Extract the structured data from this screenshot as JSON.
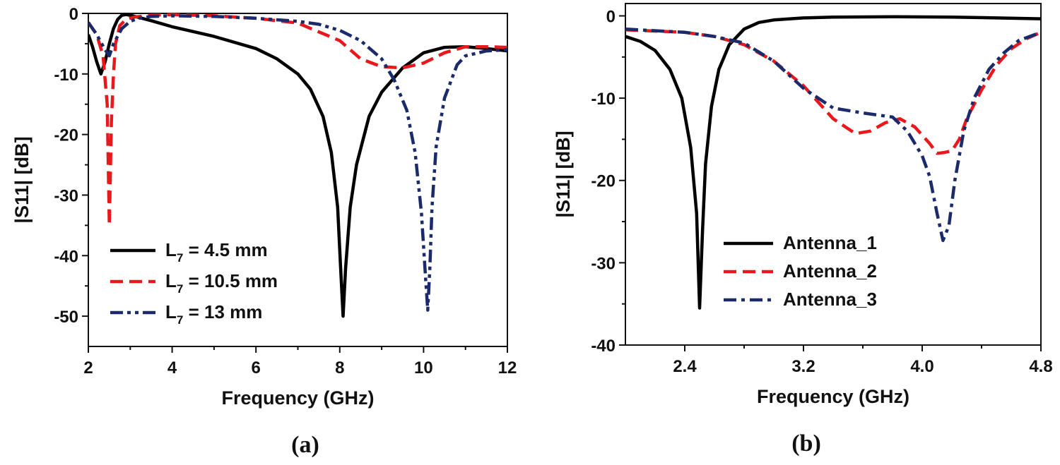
{
  "chart_data": [
    {
      "type": "line",
      "panel_label": "(a)",
      "xlabel": "Frequency (GHz)",
      "ylabel": "|S11| [dB]",
      "xlim": [
        2,
        12
      ],
      "ylim": [
        -55,
        0
      ],
      "xticks": [
        "2",
        "4",
        "6",
        "8",
        "10",
        "12"
      ],
      "xtick_values": [
        2,
        4,
        6,
        8,
        10,
        12
      ],
      "yticks": [
        "0",
        "-10",
        "-20",
        "-30",
        "-40",
        "-50"
      ],
      "ytick_values": [
        0,
        -10,
        -20,
        -30,
        -40,
        -50
      ],
      "legend_position": "bottom-left",
      "series": [
        {
          "name": "L7 = 4.5 mm",
          "legend_main": "L",
          "legend_sub": "7",
          "legend_rest": " = 4.5 mm",
          "color": "#000000",
          "dash": "solid",
          "x": [
            2,
            2.1,
            2.2,
            2.3,
            2.4,
            2.5,
            2.6,
            2.7,
            2.8,
            2.9,
            3.0,
            3.5,
            4,
            5,
            6,
            6.5,
            7,
            7.3,
            7.6,
            7.8,
            7.95,
            8.02,
            8.08,
            8.14,
            8.25,
            8.4,
            8.7,
            9,
            9.5,
            10,
            10.5,
            11,
            11.5,
            12
          ],
          "y": [
            -3.5,
            -5.5,
            -8,
            -10,
            -8,
            -5,
            -2.5,
            -1,
            -0.3,
            -0.2,
            -0.3,
            -1.2,
            -2.2,
            -3.8,
            -5.8,
            -7.5,
            -10,
            -12.5,
            -17,
            -23,
            -32,
            -42,
            -50,
            -42,
            -32,
            -25,
            -17,
            -13,
            -9,
            -6.5,
            -5.6,
            -5.5,
            -5.8,
            -6.2
          ]
        },
        {
          "name": "L7 = 10.5 mm",
          "legend_main": "L",
          "legend_sub": "7",
          "legend_rest": " = 10.5 mm",
          "color": "#e8181c",
          "dash": "dashed",
          "x": [
            2,
            2.2,
            2.35,
            2.45,
            2.5,
            2.55,
            2.6,
            2.65,
            2.75,
            2.9,
            3.1,
            3.5,
            4,
            5,
            6,
            7,
            8,
            8.5,
            9,
            9.5,
            10,
            10.5,
            11,
            11.5,
            12
          ],
          "y": [
            -1.5,
            -3.5,
            -7,
            -15,
            -35,
            -18,
            -10,
            -5,
            -2,
            -1,
            -0.6,
            -0.3,
            -0.2,
            -0.4,
            -0.8,
            -1.6,
            -4.5,
            -7.5,
            -8.8,
            -9,
            -8.2,
            -6.5,
            -5.5,
            -5.5,
            -5.6
          ]
        },
        {
          "name": "L7 = 13 mm",
          "legend_main": "L",
          "legend_sub": "7",
          "legend_rest": " = 13 mm",
          "color": "#1b2a6b",
          "dash": "dashdotdot",
          "x": [
            2,
            2.2,
            2.4,
            2.5,
            2.6,
            2.8,
            3.0,
            3.2,
            3.5,
            4,
            5,
            6,
            7,
            7.5,
            8,
            8.5,
            9,
            9.3,
            9.6,
            9.8,
            9.95,
            10.05,
            10.1,
            10.15,
            10.2,
            10.3,
            10.5,
            10.8,
            11,
            11.5,
            12
          ],
          "y": [
            -1.5,
            -3.5,
            -6,
            -7,
            -5,
            -2.5,
            -1.3,
            -0.8,
            -0.5,
            -0.4,
            -0.5,
            -0.8,
            -1.3,
            -1.8,
            -2.8,
            -4.5,
            -7.5,
            -11,
            -16,
            -23,
            -33,
            -44,
            -49,
            -42,
            -32,
            -22,
            -14,
            -8.5,
            -7,
            -6.2,
            -6
          ]
        }
      ]
    },
    {
      "type": "line",
      "panel_label": "(b)",
      "xlabel": "Frequency (GHz)",
      "ylabel": "|S11| [dB]",
      "xlim": [
        2,
        4.8
      ],
      "ylim": [
        -40,
        1.5
      ],
      "xticks": [
        "2.4",
        "3.2",
        "4.0",
        "4.8"
      ],
      "xtick_values": [
        2.4,
        3.2,
        4.0,
        4.8
      ],
      "yticks": [
        "0",
        "-10",
        "-20",
        "-30",
        "-40"
      ],
      "ytick_values": [
        0,
        -10,
        -20,
        -30,
        -40
      ],
      "legend_position": "bottom-left",
      "series": [
        {
          "name": "Antenna_1",
          "legend_main": "Antenna_1",
          "legend_sub": "",
          "legend_rest": "",
          "color": "#000000",
          "dash": "solid",
          "x": [
            2,
            2.1,
            2.2,
            2.3,
            2.38,
            2.44,
            2.48,
            2.5,
            2.52,
            2.54,
            2.58,
            2.63,
            2.7,
            2.8,
            2.9,
            3.0,
            3.2,
            3.4,
            3.8,
            4.2,
            4.8
          ],
          "y": [
            -2.5,
            -3.1,
            -4.2,
            -6.5,
            -10,
            -16,
            -24,
            -35.5,
            -26,
            -18,
            -11,
            -6.5,
            -3.5,
            -1.6,
            -0.8,
            -0.5,
            -0.25,
            -0.15,
            -0.1,
            -0.15,
            -0.35
          ]
        },
        {
          "name": "Antenna_2",
          "legend_main": "Antenna_2",
          "legend_sub": "",
          "legend_rest": "",
          "color": "#e8181c",
          "dash": "dashed",
          "x": [
            2,
            2.4,
            2.6,
            2.8,
            3.0,
            3.2,
            3.4,
            3.55,
            3.65,
            3.75,
            3.85,
            3.95,
            4.05,
            4.1,
            4.15,
            4.2,
            4.25,
            4.3,
            4.4,
            4.5,
            4.6,
            4.7,
            4.8
          ],
          "y": [
            -1.7,
            -2,
            -2.5,
            -3.5,
            -5.5,
            -8.5,
            -12.5,
            -14.3,
            -14,
            -13,
            -12.5,
            -13.5,
            -15.5,
            -16.7,
            -16.6,
            -16.4,
            -15,
            -12.5,
            -9,
            -6,
            -4,
            -2.8,
            -2
          ]
        },
        {
          "name": "Antenna_3",
          "legend_main": "Antenna_3",
          "legend_sub": "",
          "legend_rest": "",
          "color": "#1b2a6b",
          "dash": "dashdot",
          "x": [
            2,
            2.4,
            2.6,
            2.8,
            3.0,
            3.2,
            3.4,
            3.6,
            3.8,
            3.9,
            4.0,
            4.05,
            4.1,
            4.14,
            4.18,
            4.22,
            4.28,
            4.35,
            4.45,
            4.55,
            4.65,
            4.8
          ],
          "y": [
            -1.6,
            -2,
            -2.5,
            -3.3,
            -5.5,
            -8.8,
            -11.2,
            -11.8,
            -12.3,
            -14,
            -17,
            -19.5,
            -24,
            -27.3,
            -25.5,
            -20,
            -14,
            -10,
            -6.5,
            -4.5,
            -3,
            -2
          ]
        }
      ]
    }
  ]
}
